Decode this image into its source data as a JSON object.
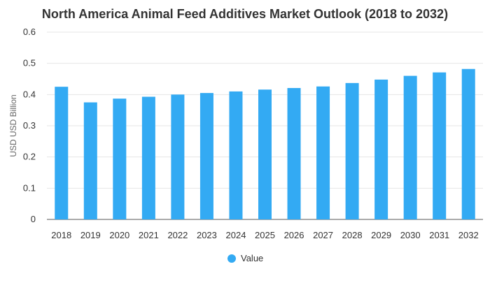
{
  "chart_data": {
    "type": "bar",
    "title": "North America Animal Feed Additives Market Outlook (2018 to 2032)",
    "xlabel": "",
    "ylabel": "USD USD Billion",
    "ylim": [
      0,
      0.6
    ],
    "yticks": [
      "0",
      "0.1",
      "0.2",
      "0.3",
      "0.4",
      "0.5",
      "0.6"
    ],
    "categories": [
      "2018",
      "2019",
      "2020",
      "2021",
      "2022",
      "2023",
      "2024",
      "2025",
      "2026",
      "2027",
      "2028",
      "2029",
      "2030",
      "2031",
      "2032"
    ],
    "series": [
      {
        "name": "Value",
        "color": "#33aaf3",
        "values": [
          0.425,
          0.375,
          0.387,
          0.393,
          0.4,
          0.405,
          0.41,
          0.416,
          0.421,
          0.426,
          0.437,
          0.448,
          0.46,
          0.471,
          0.482
        ]
      }
    ],
    "grid": true,
    "legend": "bottom-center"
  }
}
